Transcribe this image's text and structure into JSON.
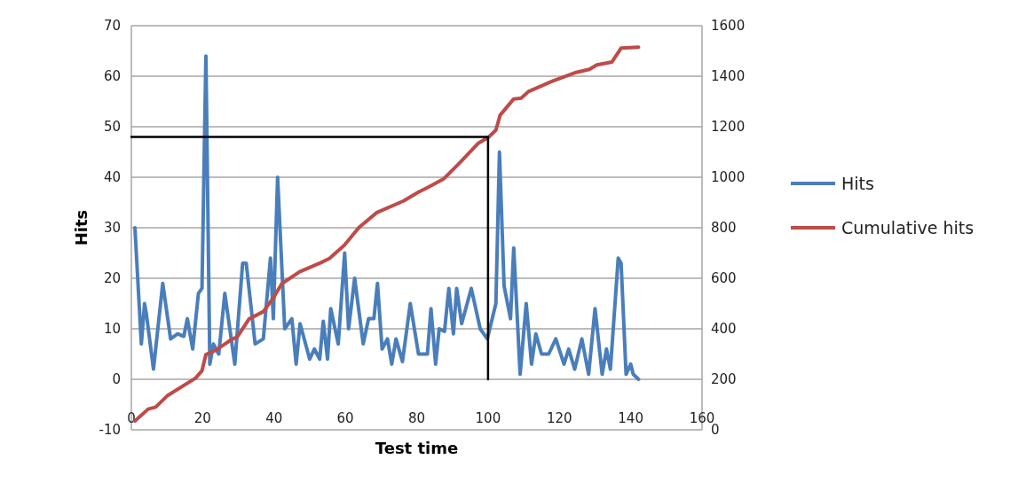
{
  "chart_data": {
    "type": "line",
    "xlabel": "Test time",
    "ylabel": "Hits",
    "xlim": [
      0,
      160
    ],
    "xticks": [
      0,
      20,
      40,
      60,
      80,
      100,
      120,
      140,
      160
    ],
    "ylim": [
      -10,
      70
    ],
    "yticks": [
      -10,
      0,
      10,
      20,
      30,
      40,
      50,
      60,
      70
    ],
    "y2lim": [
      0,
      1600
    ],
    "y2ticks": [
      0,
      200,
      400,
      600,
      800,
      1000,
      1200,
      1400,
      1600
    ],
    "grid": "y",
    "legend": "right",
    "line_style": "solid",
    "marker": "none",
    "series": [
      {
        "name": "Hits",
        "color": "#4a7ebb",
        "x": [
          1,
          2.8,
          3.7,
          4.2,
          6.2,
          8.8,
          11,
          13,
          14.7,
          15.7,
          17.2,
          18.8,
          19.8,
          20.9,
          22,
          23,
          24.5,
          26.2,
          29,
          31.2,
          32.2,
          34.7,
          37,
          39,
          39.8,
          41,
          43,
          45,
          46.2,
          47.3,
          50,
          51.3,
          52.8,
          53.8,
          55,
          55.9,
          58,
          59.8,
          60.9,
          62.6,
          65,
          66.5,
          68,
          69,
          70.3,
          71.8,
          73,
          74.2,
          76,
          78.2,
          80.5,
          83,
          84,
          85.3,
          86.3,
          87.8,
          89,
          90.3,
          91.2,
          92.6,
          95.3,
          97.8,
          99.8,
          102.2,
          103.2,
          104.5,
          106.3,
          107.2,
          109,
          110.7,
          112.2,
          113.4,
          115,
          117,
          119,
          121.3,
          122.6,
          124.3,
          126.3,
          128.2,
          130,
          132,
          133.2,
          134.3,
          136.5,
          137.3,
          138.7,
          140,
          140.7,
          142.2
        ],
        "values": [
          30,
          7,
          15,
          13,
          2,
          19,
          8,
          9,
          8.5,
          12,
          6,
          17,
          18,
          64,
          3,
          7,
          5,
          17,
          3,
          23,
          23,
          7,
          8,
          24,
          12,
          40,
          10,
          12,
          3,
          11,
          4,
          6,
          4,
          11.5,
          4,
          14,
          7,
          25,
          10,
          20,
          7,
          12,
          12,
          19,
          6,
          8,
          3,
          8,
          3.5,
          15,
          5,
          5,
          14,
          3,
          10,
          9.5,
          18,
          9,
          18,
          11,
          18,
          10,
          8,
          15,
          45,
          18.5,
          12,
          26,
          1,
          15,
          3,
          9,
          5,
          5,
          8,
          3,
          6,
          2,
          8,
          1,
          14,
          1,
          6,
          2,
          24,
          23,
          1,
          3,
          1,
          0
        ]
      },
      {
        "name": "Cumulative hits",
        "color": "#be4b48",
        "axis": "y2",
        "x": [
          1,
          4.7,
          6.8,
          10,
          18,
          19.8,
          20.9,
          23.8,
          28,
          29.7,
          33,
          37,
          39.7,
          42.2,
          47.2,
          53,
          55.5,
          59.7,
          63.8,
          68.8,
          76.3,
          80.5,
          83,
          87.6,
          92.2,
          97.2,
          100.1,
          102.2,
          103.4,
          107.2,
          109.3,
          111.3,
          118,
          124.7,
          128.4,
          130.5,
          134.7,
          137.3,
          142.2
        ],
        "values": [
          35,
          82,
          90,
          134,
          205,
          234,
          298,
          316,
          357,
          368,
          439,
          468,
          520,
          579,
          626,
          661,
          678,
          731,
          801,
          860,
          906,
          941,
          959,
          994,
          1059,
          1134,
          1158,
          1187,
          1246,
          1310,
          1313,
          1339,
          1380,
          1415,
          1427,
          1445,
          1456,
          1511,
          1515
        ]
      },
      {
        "color": "#000000",
        "x": [
          0,
          100,
          100
        ],
        "values": [
          48,
          48,
          0
        ]
      }
    ]
  }
}
